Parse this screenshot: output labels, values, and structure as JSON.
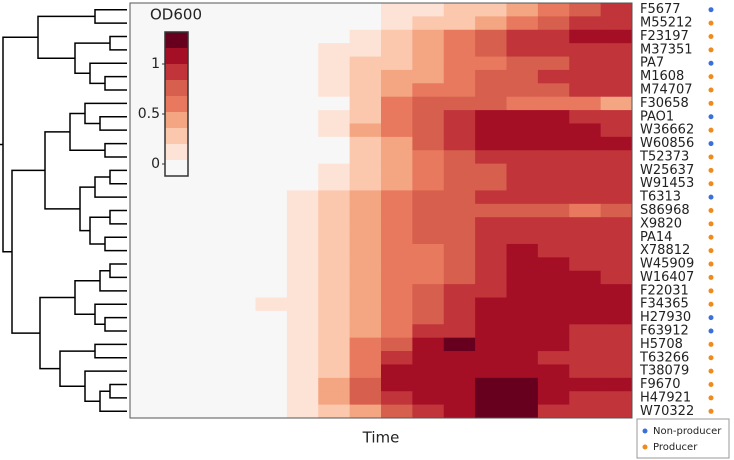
{
  "chart_data": {
    "type": "heatmap",
    "x_label": "Time",
    "rows": [
      "F5677",
      "M55212",
      "F23197",
      "M37351",
      "PA7",
      "M1608",
      "M74707",
      "F30658",
      "PAO1",
      "W36662",
      "W60856",
      "T52373",
      "W25637",
      "W91453",
      "T6313",
      "S86968",
      "X9820",
      "PA14",
      "X78812",
      "W45909",
      "W16407",
      "F22031",
      "F34365",
      "H27930",
      "F63912",
      "H5708",
      "T63266",
      "T38079",
      "F9670",
      "H47921",
      "W70322"
    ],
    "row_groups": [
      0,
      1,
      1,
      1,
      0,
      1,
      1,
      1,
      0,
      1,
      0,
      1,
      1,
      1,
      0,
      1,
      1,
      1,
      1,
      1,
      1,
      1,
      1,
      0,
      0,
      1,
      1,
      1,
      1,
      1,
      1
    ],
    "values": [
      [
        0,
        0,
        0,
        0,
        0,
        0,
        0,
        0,
        0.1,
        0.1,
        0.3,
        0.3,
        0.45,
        0.6,
        0.75,
        0.9
      ],
      [
        0,
        0,
        0,
        0,
        0,
        0,
        0,
        0,
        0.1,
        0.3,
        0.3,
        0.45,
        0.6,
        0.75,
        0.9,
        0.9
      ],
      [
        0,
        0,
        0,
        0,
        0,
        0,
        0,
        0.1,
        0.3,
        0.45,
        0.6,
        0.75,
        0.9,
        0.9,
        1.05,
        1.05
      ],
      [
        0,
        0,
        0,
        0,
        0,
        0,
        0.1,
        0.1,
        0.3,
        0.45,
        0.6,
        0.75,
        0.9,
        0.9,
        0.9,
        0.9
      ],
      [
        0,
        0,
        0,
        0,
        0,
        0,
        0.1,
        0.3,
        0.3,
        0.45,
        0.6,
        0.6,
        0.75,
        0.75,
        0.9,
        0.9
      ],
      [
        0,
        0,
        0,
        0,
        0,
        0,
        0.1,
        0.3,
        0.45,
        0.45,
        0.6,
        0.75,
        0.75,
        0.9,
        0.9,
        0.9
      ],
      [
        0,
        0,
        0,
        0,
        0,
        0,
        0.1,
        0.3,
        0.45,
        0.6,
        0.6,
        0.75,
        0.75,
        0.75,
        0.9,
        0.9
      ],
      [
        0,
        0,
        0,
        0,
        0,
        0,
        0,
        0.3,
        0.6,
        0.75,
        0.75,
        0.75,
        0.6,
        0.6,
        0.6,
        0.45
      ],
      [
        0,
        0,
        0,
        0,
        0,
        0,
        0.1,
        0.3,
        0.6,
        0.75,
        0.9,
        1.05,
        1.05,
        1.05,
        0.9,
        0.9
      ],
      [
        0,
        0,
        0,
        0,
        0,
        0,
        0.1,
        0.45,
        0.6,
        0.75,
        0.9,
        1.05,
        1.05,
        1.05,
        1.05,
        0.9
      ],
      [
        0,
        0,
        0,
        0,
        0,
        0,
        0,
        0.3,
        0.45,
        0.75,
        0.9,
        1.05,
        1.05,
        1.05,
        1.05,
        1.05
      ],
      [
        0,
        0,
        0,
        0,
        0,
        0,
        0,
        0.3,
        0.45,
        0.6,
        0.75,
        0.9,
        0.9,
        0.9,
        0.9,
        0.9
      ],
      [
        0,
        0,
        0,
        0,
        0,
        0,
        0.1,
        0.3,
        0.45,
        0.6,
        0.75,
        0.75,
        0.9,
        0.9,
        0.9,
        0.9
      ],
      [
        0,
        0,
        0,
        0,
        0,
        0,
        0.1,
        0.3,
        0.45,
        0.6,
        0.75,
        0.75,
        0.9,
        0.9,
        0.9,
        0.9
      ],
      [
        0,
        0,
        0,
        0,
        0,
        0.1,
        0.3,
        0.45,
        0.6,
        0.75,
        0.75,
        0.9,
        0.9,
        0.9,
        0.9,
        0.9
      ],
      [
        0,
        0,
        0,
        0,
        0,
        0.1,
        0.3,
        0.45,
        0.6,
        0.75,
        0.75,
        0.75,
        0.75,
        0.75,
        0.6,
        0.75
      ],
      [
        0,
        0,
        0,
        0,
        0,
        0.1,
        0.3,
        0.45,
        0.6,
        0.75,
        0.75,
        0.9,
        0.9,
        0.9,
        0.9,
        0.9
      ],
      [
        0,
        0,
        0,
        0,
        0,
        0.1,
        0.3,
        0.45,
        0.6,
        0.75,
        0.75,
        0.9,
        0.9,
        0.9,
        0.9,
        0.9
      ],
      [
        0,
        0,
        0,
        0,
        0,
        0.1,
        0.3,
        0.45,
        0.6,
        0.6,
        0.75,
        0.9,
        1.05,
        0.9,
        0.9,
        0.9
      ],
      [
        0,
        0,
        0,
        0,
        0,
        0.1,
        0.3,
        0.45,
        0.6,
        0.6,
        0.75,
        0.9,
        1.05,
        1.05,
        0.9,
        0.9
      ],
      [
        0,
        0,
        0,
        0,
        0,
        0.1,
        0.3,
        0.45,
        0.6,
        0.6,
        0.75,
        0.9,
        1.05,
        1.05,
        1.05,
        0.9
      ],
      [
        0,
        0,
        0,
        0,
        0,
        0.1,
        0.3,
        0.45,
        0.6,
        0.75,
        0.9,
        0.9,
        1.05,
        1.05,
        1.05,
        1.05
      ],
      [
        0,
        0,
        0,
        0,
        0.1,
        0.1,
        0.3,
        0.45,
        0.6,
        0.75,
        0.9,
        1.05,
        1.05,
        1.05,
        1.05,
        1.05
      ],
      [
        0,
        0,
        0,
        0,
        0,
        0.1,
        0.3,
        0.45,
        0.6,
        0.75,
        0.9,
        1.05,
        1.05,
        1.05,
        1.05,
        1.05
      ],
      [
        0,
        0,
        0,
        0,
        0,
        0.1,
        0.3,
        0.45,
        0.6,
        0.9,
        0.9,
        1.05,
        1.05,
        1.05,
        0.9,
        0.9
      ],
      [
        0,
        0,
        0,
        0,
        0,
        0.1,
        0.3,
        0.6,
        0.75,
        1.05,
        1.2,
        1.05,
        1.05,
        1.05,
        0.9,
        0.9
      ],
      [
        0,
        0,
        0,
        0,
        0,
        0.1,
        0.3,
        0.6,
        0.9,
        1.05,
        1.05,
        1.05,
        1.05,
        0.9,
        0.9,
        0.9
      ],
      [
        0,
        0,
        0,
        0,
        0,
        0.1,
        0.3,
        0.6,
        1.05,
        1.05,
        1.05,
        1.05,
        1.05,
        1.05,
        0.9,
        0.9
      ],
      [
        0,
        0,
        0,
        0,
        0,
        0.1,
        0.45,
        0.75,
        1.05,
        1.05,
        1.05,
        1.2,
        1.2,
        1.05,
        1.05,
        1.05
      ],
      [
        0,
        0,
        0,
        0,
        0,
        0.1,
        0.45,
        0.75,
        0.9,
        1.05,
        1.05,
        1.2,
        1.2,
        1.05,
        0.9,
        0.9
      ],
      [
        0,
        0,
        0,
        0,
        0,
        0.1,
        0.3,
        0.45,
        0.75,
        0.9,
        1.05,
        1.2,
        1.2,
        0.9,
        0.9,
        0.9
      ]
    ],
    "colorbar": {
      "title": "OD600",
      "levels": [
        -0.12,
        0.04,
        0.2,
        0.36,
        0.52,
        0.68,
        0.84,
        1.0,
        1.16,
        1.32
      ],
      "colors": [
        "#f7f7f7",
        "#fde3d6",
        "#fbc8ae",
        "#f4a582",
        "#e8785e",
        "#d6604d",
        "#c0343a",
        "#a50f26",
        "#67001f"
      ],
      "ticks": [
        0,
        0.5,
        1
      ]
    },
    "legend": [
      {
        "name": "Non-producer",
        "color": "#3b6fd9"
      },
      {
        "name": "Producer",
        "color": "#f08a1c"
      }
    ]
  }
}
